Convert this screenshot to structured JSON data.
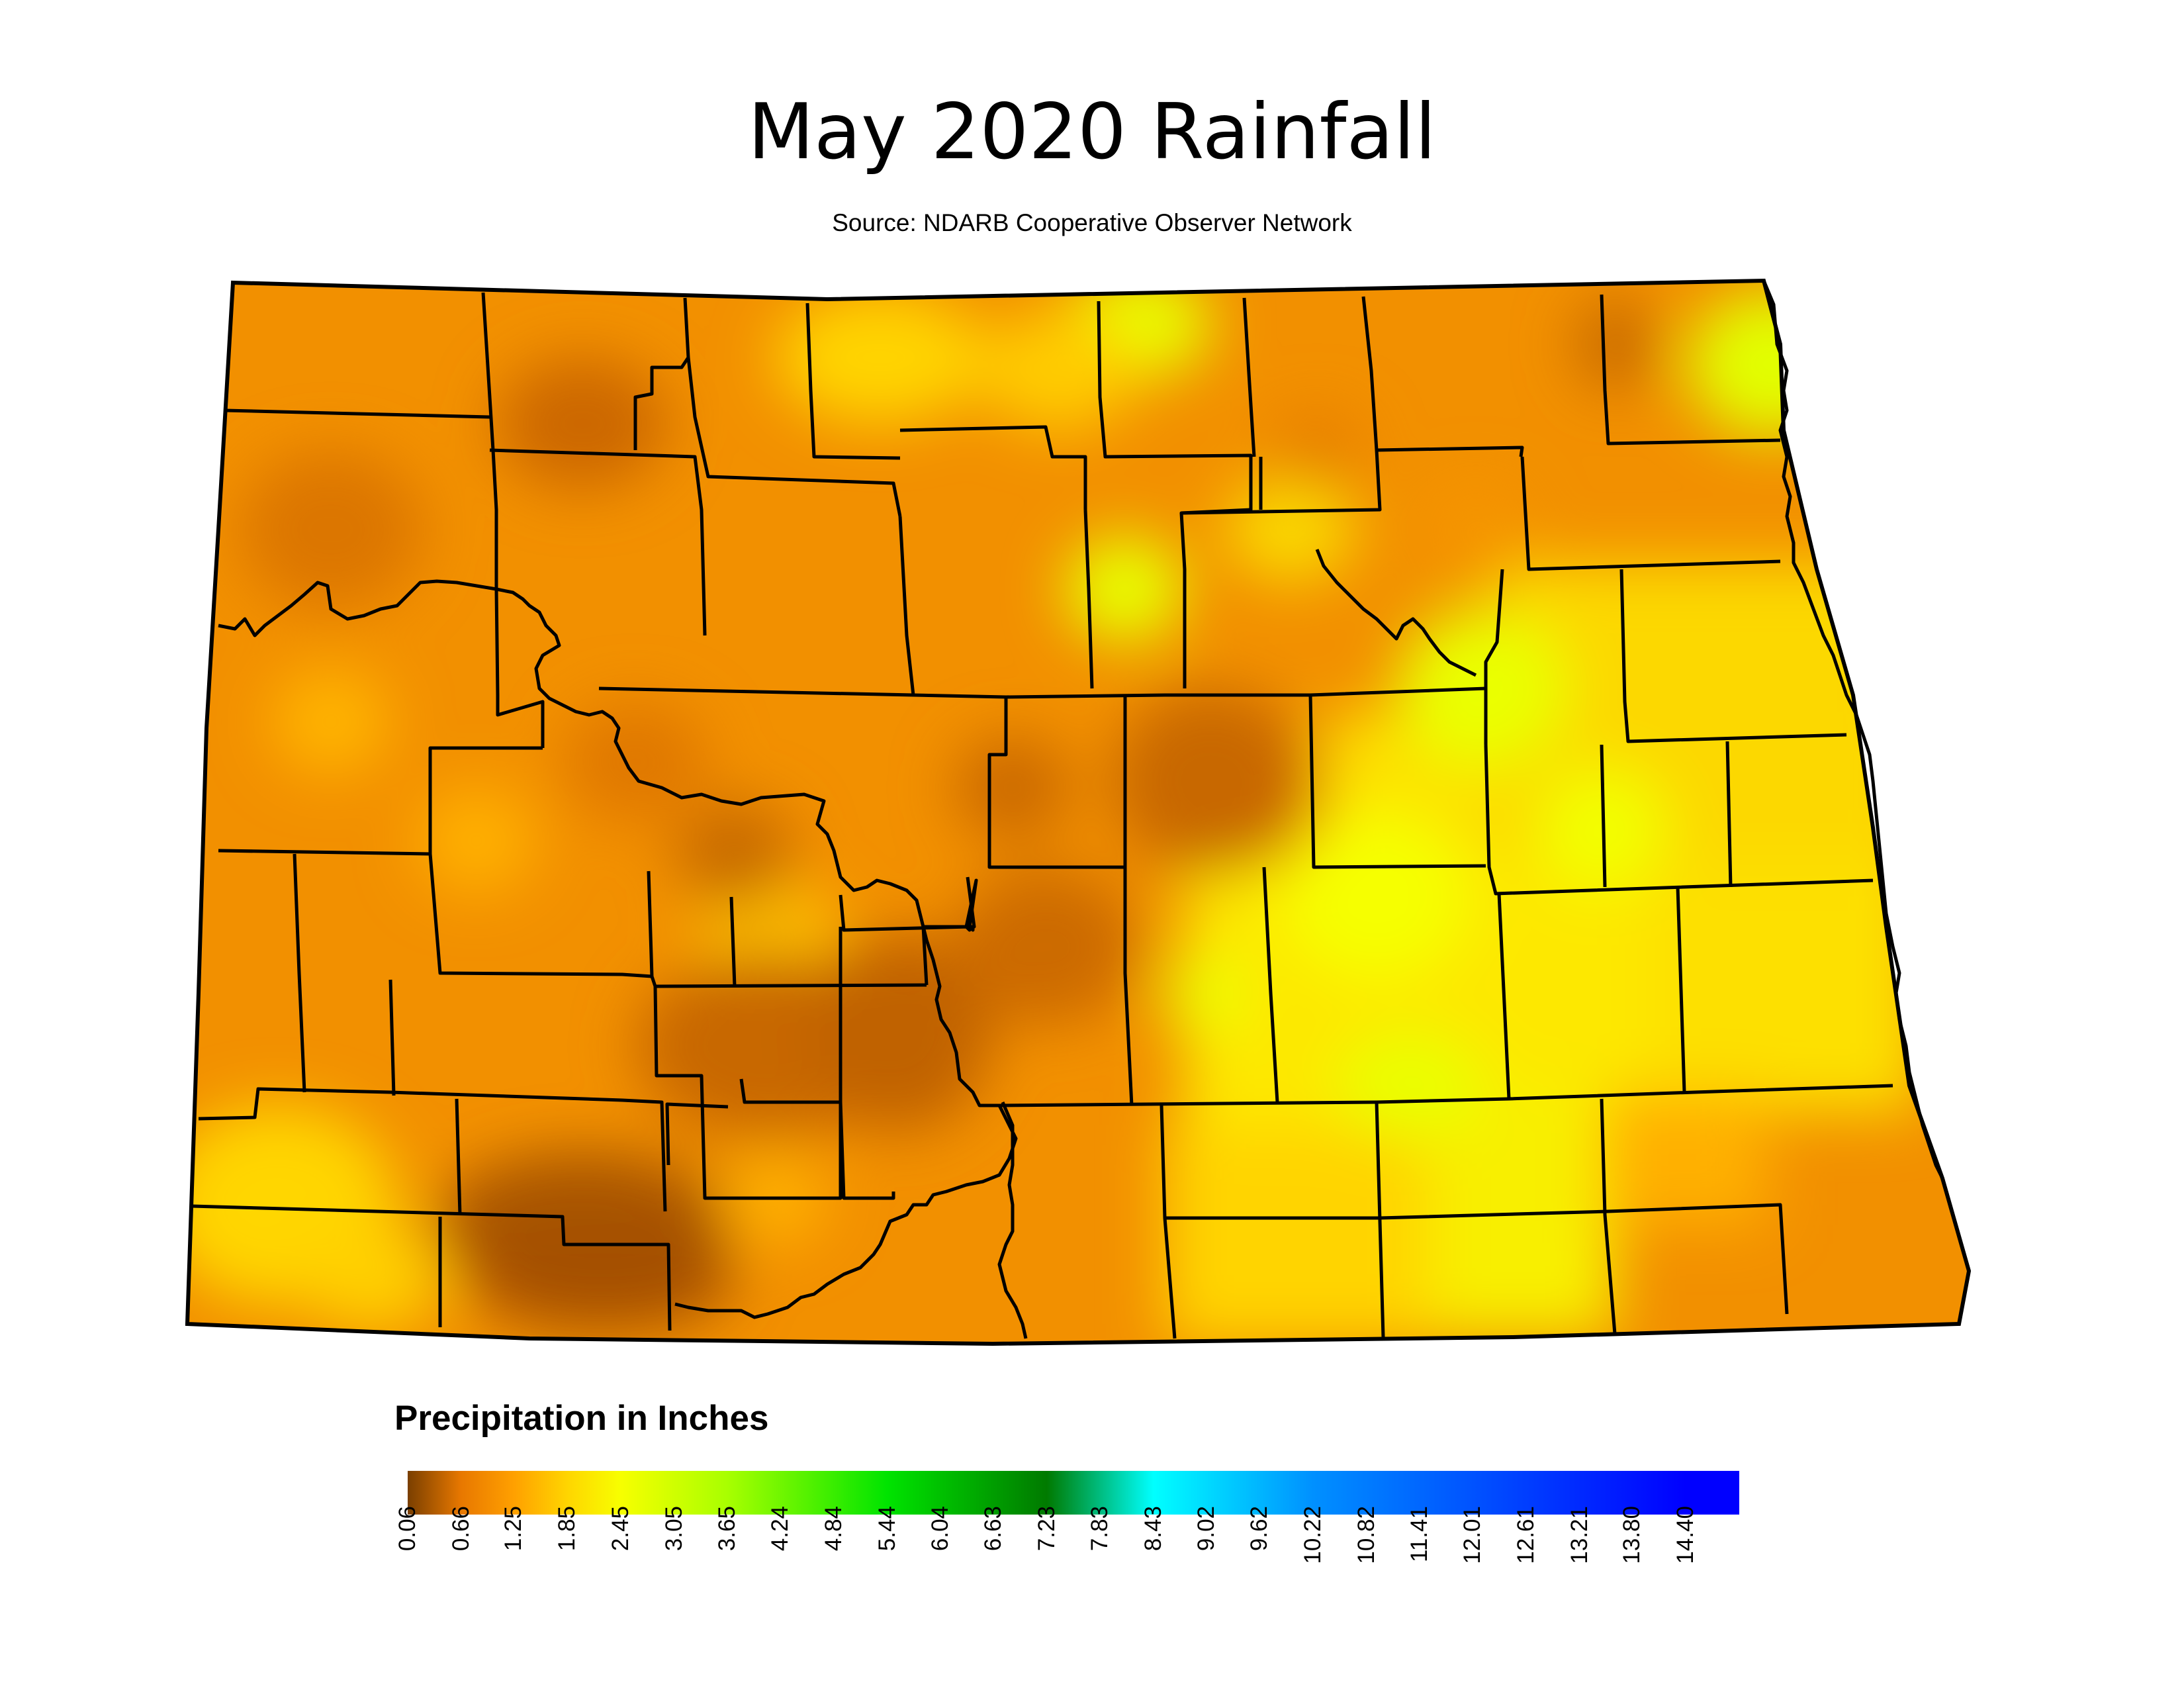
{
  "title": "May 2020 Rainfall",
  "subtitle": "Source: NDARB Cooperative Observer Network",
  "legend": {
    "title": "Precipitation in Inches",
    "ticks": [
      "0.06",
      "0.66",
      "1.25",
      "1.85",
      "2.45",
      "3.05",
      "3.65",
      "4.24",
      "4.84",
      "5.44",
      "6.04",
      "6.63",
      "7.23",
      "7.83",
      "8.43",
      "9.02",
      "9.62",
      "10.22",
      "10.82",
      "11.41",
      "12.01",
      "12.61",
      "13.21",
      "13.80",
      "14.40"
    ],
    "color_stops": [
      {
        "value": 0.06,
        "color": "#7a3f00"
      },
      {
        "value": 0.66,
        "color": "#e87800"
      },
      {
        "value": 1.25,
        "color": "#ffa000"
      },
      {
        "value": 1.85,
        "color": "#ffd500"
      },
      {
        "value": 2.45,
        "color": "#f7ff00"
      },
      {
        "value": 3.65,
        "color": "#a8ff00"
      },
      {
        "value": 5.44,
        "color": "#00e400"
      },
      {
        "value": 7.23,
        "color": "#007a00"
      },
      {
        "value": 8.43,
        "color": "#00ffff"
      },
      {
        "value": 10.22,
        "color": "#0090ff"
      },
      {
        "value": 14.4,
        "color": "#0000ff"
      }
    ]
  },
  "map": {
    "outline_color": "#000000",
    "fill_colors": {
      "dark": "#b85c00",
      "orange": "#ef8600",
      "light_orange": "#f9a400",
      "yellow_orange": "#ffc800",
      "yellow": "#fde700",
      "lime": "#e8ff00"
    }
  }
}
